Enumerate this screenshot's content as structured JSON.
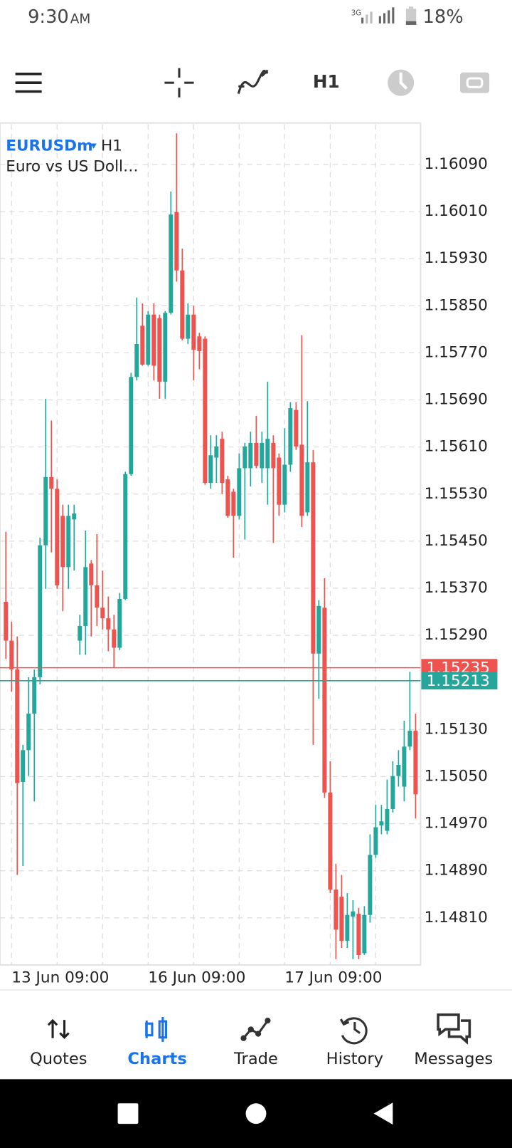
{
  "status_bar": {
    "time": "9:30",
    "ampm": "AM",
    "network": "3G",
    "battery": "18%"
  },
  "toolbar": {
    "timeframe": "H1"
  },
  "chart_data": {
    "type": "candlestick",
    "symbol": "EURUSDm",
    "timeframe": "H1",
    "description": "Euro vs US Doll…",
    "categories": [
      null,
      "13 Jun 09:00",
      null,
      null,
      null,
      null,
      null,
      null,
      null,
      null,
      null,
      null,
      null,
      null,
      null,
      null,
      null,
      null,
      null,
      null,
      null,
      null,
      null,
      null,
      null,
      "16 Jun 09:00",
      null,
      null,
      null,
      null,
      null,
      null,
      null,
      null,
      null,
      null,
      null,
      null,
      null,
      null,
      null,
      null,
      null,
      null,
      null,
      null,
      null,
      null,
      null,
      "17 Jun 09:00",
      null,
      null,
      null,
      null,
      null,
      null,
      null,
      null,
      null,
      null,
      null,
      null,
      null,
      null,
      null,
      null,
      null,
      null,
      null,
      null,
      null,
      null,
      null
    ],
    "open": [
      1.15347,
      1.15281,
      1.15232,
      1.15041,
      1.15095,
      1.15157,
      1.15219,
      1.15443,
      1.15559,
      1.15539,
      1.15493,
      1.15406,
      1.15487,
      1.15281,
      1.15306,
      1.15412,
      1.15375,
      1.15337,
      1.15319,
      1.153,
      1.15269,
      1.15352,
      1.15564,
      1.15729,
      1.15816,
      1.1575,
      1.15835,
      1.15829,
      1.15721,
      1.15838,
      1.16009,
      1.1591,
      1.15794,
      1.15835,
      1.15798,
      1.15794,
      1.15549,
      1.15592,
      1.15624,
      1.15555,
      1.15534,
      1.15493,
      1.15574,
      1.15574,
      1.15617,
      1.15574,
      1.15574,
      1.15617,
      1.15592,
      1.15512,
      1.1558,
      1.15673,
      1.15614,
      1.15499,
      1.15584,
      1.15259,
      1.15337,
      1.15023,
      1.14858,
      1.14846,
      1.14771,
      1.14812,
      1.14817,
      1.1475,
      1.14815,
      1.14917,
      1.14967,
      1.14958,
      1.14995,
      1.15051,
      1.15033,
      1.15101,
      1.15128
    ],
    "high": [
      1.15466,
      1.15313,
      1.15288,
      1.15104,
      1.15219,
      1.15232,
      1.15456,
      1.15692,
      1.15655,
      1.15555,
      1.15512,
      1.15512,
      1.15512,
      1.15325,
      1.15468,
      1.15418,
      1.15462,
      1.154,
      1.15356,
      1.15325,
      1.15362,
      1.15568,
      1.15736,
      1.15864,
      1.15854,
      1.15841,
      1.15854,
      1.15835,
      1.15841,
      1.16044,
      1.16143,
      1.15947,
      1.15854,
      1.1585,
      1.15804,
      1.15798,
      1.1563,
      1.1563,
      1.15636,
      1.15561,
      1.15539,
      1.15599,
      1.15617,
      1.15636,
      1.15663,
      1.15636,
      1.15721,
      1.1563,
      1.15599,
      1.15642,
      1.15686,
      1.15686,
      1.158,
      1.15688,
      1.15605,
      1.1535,
      1.15387,
      1.15076,
      1.14902,
      1.14883,
      1.14852,
      1.1484,
      1.14827,
      1.1483,
      1.14952,
      1.15002,
      1.15002,
      1.15045,
      1.15076,
      1.15095,
      1.15145,
      1.15228,
      1.15157
    ],
    "low": [
      1.1525,
      1.15194,
      1.14883,
      1.14898,
      1.15051,
      1.15008,
      1.15207,
      1.15369,
      1.15431,
      1.15369,
      1.15331,
      1.15369,
      1.154,
      1.15257,
      1.15257,
      1.15288,
      1.15306,
      1.153,
      1.15263,
      1.15235,
      1.15265,
      1.1535,
      1.15561,
      1.15723,
      1.15748,
      1.15748,
      1.15723,
      1.15692,
      1.15692,
      1.15835,
      1.15891,
      1.15791,
      1.15785,
      1.15723,
      1.15742,
      1.15546,
      1.15539,
      1.15549,
      1.1553,
      1.1549,
      1.15422,
      1.15487,
      1.15453,
      1.15543,
      1.15574,
      1.15549,
      1.15512,
      1.15447,
      1.15493,
      1.15499,
      1.15568,
      1.15605,
      1.15474,
      1.15493,
      1.15104,
      1.15182,
      1.15014,
      1.14852,
      1.1474,
      1.14759,
      1.14759,
      1.1474,
      1.1474,
      1.14747,
      1.14802,
      1.14912,
      1.14952,
      1.14952,
      1.14989,
      1.15033,
      1.15008,
      1.15095,
      1.14979
    ],
    "close": [
      1.15281,
      1.15232,
      1.15039,
      1.15095,
      1.15157,
      1.15219,
      1.15443,
      1.15559,
      1.15539,
      1.15375,
      1.15406,
      1.15493,
      1.15497,
      1.15306,
      1.15406,
      1.15375,
      1.15337,
      1.15319,
      1.153,
      1.15269,
      1.15352,
      1.15564,
      1.15729,
      1.15785,
      1.1575,
      1.15835,
      1.15748,
      1.15721,
      1.15838,
      1.16005,
      1.1591,
      1.15794,
      1.15835,
      1.15775,
      1.15773,
      1.15549,
      1.15596,
      1.15611,
      1.15549,
      1.15493,
      1.15493,
      1.15574,
      1.15611,
      1.15617,
      1.15578,
      1.15617,
      1.15624,
      1.15574,
      1.15512,
      1.1558,
      1.15676,
      1.15611,
      1.15493,
      1.15584,
      1.15259,
      1.1534,
      1.15023,
      1.14858,
      1.1479,
      1.14771,
      1.14815,
      1.14821,
      1.14747,
      1.14815,
      1.14917,
      1.14964,
      1.14974,
      1.14995,
      1.15051,
      1.1507,
      1.15101,
      1.15128,
      1.1502
    ],
    "up_color": "#26a69a",
    "down_color": "#ef5350",
    "ylim": [
      1.1473,
      1.16158
    ],
    "yticks": [
      {
        "value": 1.1609,
        "label": "1.16090"
      },
      {
        "value": 1.1601,
        "label": "1.16010"
      },
      {
        "value": 1.1593,
        "label": "1.15930"
      },
      {
        "value": 1.1585,
        "label": "1.15850"
      },
      {
        "value": 1.1577,
        "label": "1.15770"
      },
      {
        "value": 1.1569,
        "label": "1.15690"
      },
      {
        "value": 1.1561,
        "label": "1.15610"
      },
      {
        "value": 1.1553,
        "label": "1.15530"
      },
      {
        "value": 1.1545,
        "label": "1.15450"
      },
      {
        "value": 1.1537,
        "label": "1.15370"
      },
      {
        "value": 1.1529,
        "label": "1.15290"
      },
      {
        "value": 1.1513,
        "label": "1.15130"
      },
      {
        "value": 1.1505,
        "label": "1.15050"
      },
      {
        "value": 1.1497,
        "label": "1.14970"
      },
      {
        "value": 1.1489,
        "label": "1.14890"
      },
      {
        "value": 1.1481,
        "label": "1.14810"
      }
    ],
    "grid": true,
    "price_lines": [
      {
        "value": 1.15235,
        "color": "#ef5350"
      },
      {
        "value": 1.15213,
        "color": "#26a69a"
      }
    ]
  },
  "nav": {
    "items": [
      "Quotes",
      "Charts",
      "Trade",
      "History",
      "Messages"
    ],
    "active": 1
  }
}
